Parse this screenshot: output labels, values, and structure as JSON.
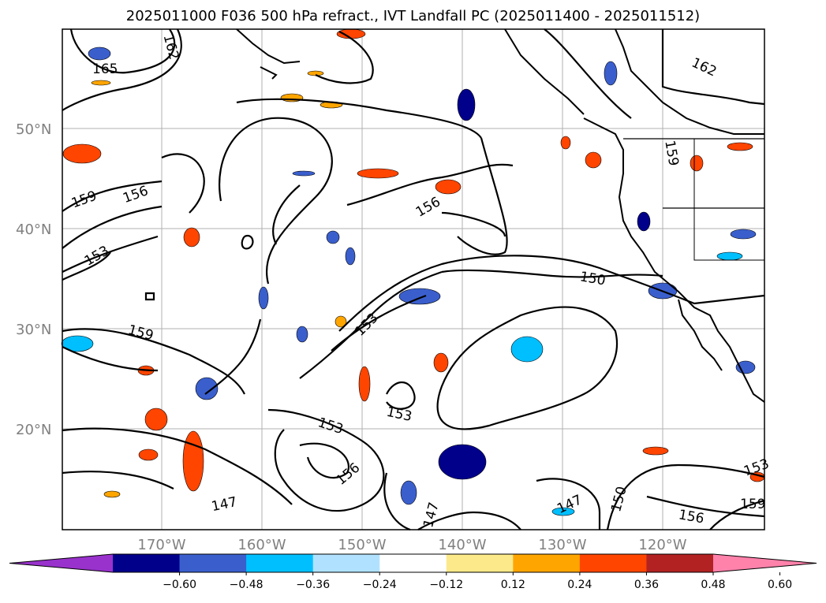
{
  "title": "2025011000 F036 500 hPa refract., IVT Landfall PC (2025011400 - 2025011512)",
  "lat_labels": [
    "50°N",
    "40°N",
    "30°N",
    "20°N"
  ],
  "lon_labels": [
    "170°W",
    "160°W",
    "150°W",
    "140°W",
    "130°W",
    "120°W"
  ],
  "colorbar": {
    "ticks": [
      "−0.60",
      "−0.48",
      "−0.36",
      "−0.24",
      "−0.12",
      "0.12",
      "0.24",
      "0.36",
      "0.48",
      "0.60"
    ],
    "colors": [
      "#9932cc",
      "#00008b",
      "#3a5fcd",
      "#00bfff",
      "#b0e2ff",
      "#ffffff",
      "#fce98a",
      "#ffa500",
      "#ff4500",
      "#b22222",
      "#ff82ab"
    ]
  },
  "contour_labels": [
    "165",
    "162",
    "162",
    "159",
    "159",
    "156",
    "156",
    "153",
    "150",
    "159",
    "153",
    "153",
    "153",
    "156",
    "147",
    "147",
    "147",
    "150",
    "156",
    "159",
    "153"
  ],
  "map_colors": {
    "negative": "#3a5fcd",
    "negative_light": "#00bfff",
    "positive": "#ff4500",
    "positive_light": "#ffa500",
    "contour": "#000000",
    "grid": "#b0b0b0"
  }
}
